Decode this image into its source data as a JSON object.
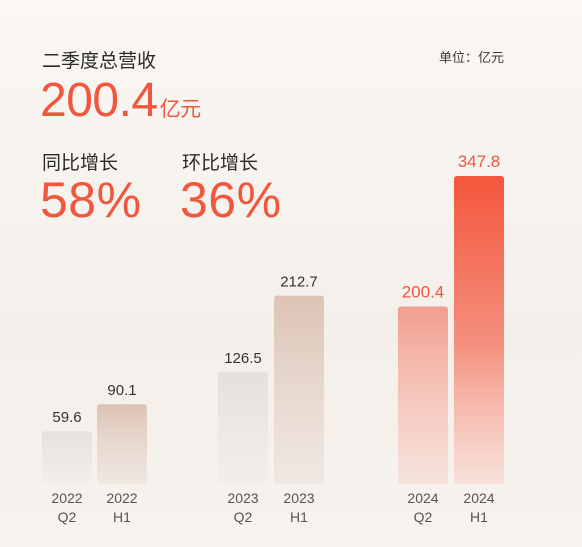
{
  "header": {
    "title": "二季度总营收",
    "unit_label": "单位：亿元",
    "total_value": "200.4",
    "total_unit": "亿元"
  },
  "stats": [
    {
      "label": "同比增长",
      "value": "58%"
    },
    {
      "label": "环比增长",
      "value": "36%"
    }
  ],
  "colors": {
    "accent": "#f0573c",
    "text": "#2a2a2a",
    "q2_bar": "#e5e2df",
    "h1_bar": "#dcc3b4",
    "highlight_q2": "#f2a495",
    "highlight_h1": "#f5624a"
  },
  "chart_data": {
    "type": "bar",
    "categories": [
      "2022\nQ2",
      "2022\nH1",
      "2023\nQ2",
      "2023\nH1",
      "2024\nQ2",
      "2024\nH1"
    ],
    "values": [
      59.6,
      90.1,
      126.5,
      212.7,
      200.4,
      347.8
    ],
    "value_labels": [
      "59.6",
      "90.1",
      "126.5",
      "212.7",
      "200.4",
      "347.8"
    ],
    "highlighted": [
      false,
      false,
      false,
      false,
      true,
      true
    ],
    "title": "",
    "xlabel": "",
    "ylabel": "",
    "grid": false
  }
}
